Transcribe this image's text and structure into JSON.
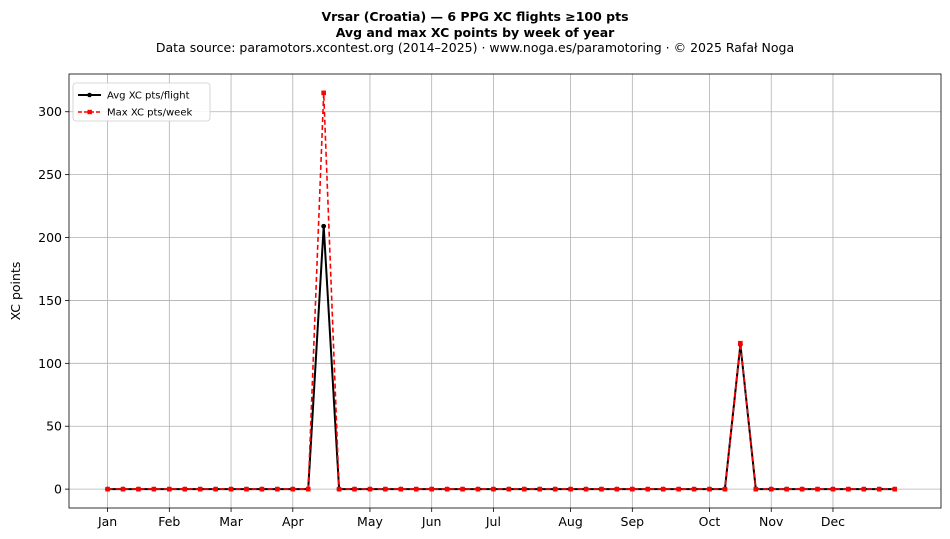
{
  "header": {
    "title_line1": "Vrsar (Croatia)  —  6 PPG XC flights ≥100 pts",
    "title_line2": "Avg and max XC points by week of year",
    "subtitle": "Data source: paramotors.xcontest.org (2014–2025)  ·  www.noga.es/paramotoring  ·  © 2025 Rafał Noga"
  },
  "chart_data": {
    "type": "line",
    "title": "Vrsar (Croatia)  —  6 PPG XC flights ≥100 pts\nAvg and max XC points by week of year",
    "subtitle": "Data source: paramotors.xcontest.org (2014–2025)  ·  www.noga.es/paramotoring  ·  © 2025 Rafał Noga",
    "xlabel": "",
    "ylabel": "XC points",
    "x_unit": "week of year",
    "x": [
      1,
      2,
      3,
      4,
      5,
      6,
      7,
      8,
      9,
      10,
      11,
      12,
      13,
      14,
      15,
      16,
      17,
      18,
      19,
      20,
      21,
      22,
      23,
      24,
      25,
      26,
      27,
      28,
      29,
      30,
      31,
      32,
      33,
      34,
      35,
      36,
      37,
      38,
      39,
      40,
      41,
      42,
      43,
      44,
      45,
      46,
      47,
      48,
      49,
      50,
      51,
      52
    ],
    "xlim": [
      -1.5,
      55.0
    ],
    "xticks": [
      {
        "week": 1,
        "label": "Jan"
      },
      {
        "week": 5,
        "label": "Feb"
      },
      {
        "week": 9,
        "label": "Mar"
      },
      {
        "week": 13,
        "label": "Apr"
      },
      {
        "week": 18,
        "label": "May"
      },
      {
        "week": 22,
        "label": "Jun"
      },
      {
        "week": 26,
        "label": "Jul"
      },
      {
        "week": 31,
        "label": "Aug"
      },
      {
        "week": 35,
        "label": "Sep"
      },
      {
        "week": 40,
        "label": "Oct"
      },
      {
        "week": 44,
        "label": "Nov"
      },
      {
        "week": 48,
        "label": "Dec"
      }
    ],
    "ylim": [
      -15,
      330
    ],
    "yticks": [
      0,
      50,
      100,
      150,
      200,
      250,
      300
    ],
    "grid": true,
    "legend": "top-left",
    "series": [
      {
        "name": "Avg XC pts/flight",
        "color": "#000000",
        "style": "solid",
        "marker": "circle",
        "values": [
          0,
          0,
          0,
          0,
          0,
          0,
          0,
          0,
          0,
          0,
          0,
          0,
          0,
          0,
          209,
          0,
          0,
          0,
          0,
          0,
          0,
          0,
          0,
          0,
          0,
          0,
          0,
          0,
          0,
          0,
          0,
          0,
          0,
          0,
          0,
          0,
          0,
          0,
          0,
          0,
          0,
          115,
          0,
          0,
          0,
          0,
          0,
          0,
          0,
          0,
          0,
          0
        ]
      },
      {
        "name": "Max XC pts/week",
        "color": "#ff0000",
        "style": "dashed",
        "marker": "square",
        "values": [
          0,
          0,
          0,
          0,
          0,
          0,
          0,
          0,
          0,
          0,
          0,
          0,
          0,
          0,
          315,
          0,
          0,
          0,
          0,
          0,
          0,
          0,
          0,
          0,
          0,
          0,
          0,
          0,
          0,
          0,
          0,
          0,
          0,
          0,
          0,
          0,
          0,
          0,
          0,
          0,
          0,
          116,
          0,
          0,
          0,
          0,
          0,
          0,
          0,
          0,
          0,
          0
        ]
      }
    ]
  }
}
